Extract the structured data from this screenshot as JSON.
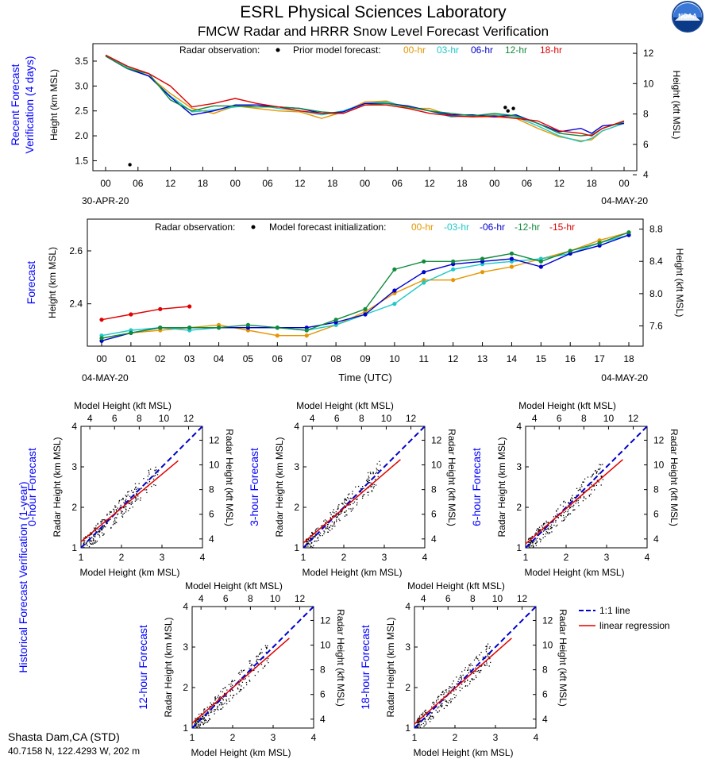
{
  "header": {
    "title": "ESRL Physical Sciences Laboratory",
    "subtitle": "FMCW Radar and HRRR Snow Level Forecast Verification",
    "logo_text": "NOAA"
  },
  "colors": {
    "h00": "#e69500",
    "h03": "#1ec8c8",
    "h06": "#0000cc",
    "h12": "#118a3c",
    "h15": "#e00000",
    "h18": "#e00000",
    "side_label": "#0000ff"
  },
  "panel1": {
    "side_label_line1": "Recent Forecast",
    "side_label_line2": "Verification (4 days)",
    "ylabel_left": "Height (km MSL)",
    "ylabel_right": "Height (kft MSL)",
    "legend": {
      "radar": "Radar observation:",
      "prior": "Prior model forecast:",
      "items": [
        "00-hr",
        "03-hr",
        "06-hr",
        "12-hr",
        "18-hr"
      ]
    },
    "xticks": [
      "00",
      "06",
      "12",
      "18",
      "00",
      "06",
      "12",
      "18",
      "00",
      "06",
      "12",
      "18",
      "00",
      "06",
      "12",
      "18",
      "00"
    ],
    "yticks_left": [
      "1.5",
      "2.0",
      "2.5",
      "3.0",
      "3.5"
    ],
    "yticks_right": [
      "4",
      "6",
      "8",
      "10",
      "12"
    ],
    "date_left": "30-APR-20",
    "date_right": "04-MAY-20"
  },
  "panel2": {
    "side_label": "Forecast",
    "ylabel_left": "Height (km MSL)",
    "ylabel_right": "Height (kft MSL)",
    "xlabel": "Time (UTC)",
    "legend": {
      "radar": "Radar observation:",
      "init": "Model forecast initialization:",
      "items": [
        "00-hr",
        "-03-hr",
        "-06-hr",
        "-12-hr",
        "-15-hr"
      ]
    },
    "xticks": [
      "00",
      "01",
      "02",
      "03",
      "04",
      "05",
      "06",
      "07",
      "08",
      "09",
      "10",
      "11",
      "12",
      "13",
      "14",
      "15",
      "16",
      "17",
      "18"
    ],
    "yticks_left": [
      "2.4",
      "2.6"
    ],
    "yticks_right": [
      "7.6",
      "8.0",
      "8.4",
      "8.8"
    ],
    "date_left": "04-MAY-20",
    "date_right": "04-MAY-20"
  },
  "scatter_common": {
    "side_label": "Historical Forecast Verification (1-year)",
    "top_label": "Model Height (kft MSL)",
    "bottom_label": "Model Height (km MSL)",
    "left_label": "Radar Height (km MSL)",
    "right_label": "Radar Height (kft MSL)",
    "ticks_km": [
      "1",
      "2",
      "3",
      "4"
    ],
    "ticks_kft": [
      "4",
      "6",
      "8",
      "10",
      "12"
    ],
    "legend_one_to_one": "1:1 line",
    "legend_regression": "linear regression"
  },
  "scatter_panels": [
    {
      "title": "0-hour Forecast"
    },
    {
      "title": "3-hour Forecast"
    },
    {
      "title": "6-hour Forecast"
    },
    {
      "title": "12-hour Forecast"
    },
    {
      "title": "18-hour Forecast"
    }
  ],
  "footer": {
    "site": "Shasta Dam,CA (STD)",
    "coords": "40.7158 N, 122.4293 W, 202 m"
  },
  "chart_data": [
    {
      "type": "line",
      "x_unit": "hours from 00 UTC 30-APR-20",
      "ylim": [
        1.3,
        3.85
      ],
      "xlim": [
        0,
        96
      ],
      "radar_observation": [
        [
          4.5,
          1.42
        ],
        [
          74,
          2.57
        ],
        [
          74.5,
          2.5
        ],
        [
          75.5,
          2.55
        ]
      ],
      "series": [
        {
          "name": "00-hr",
          "x": [
            0,
            4,
            8,
            12,
            16,
            20,
            24,
            28,
            32,
            36,
            40,
            44,
            48,
            52,
            56,
            60,
            64,
            68,
            72,
            76,
            80,
            84,
            88,
            90,
            92,
            96
          ],
          "values": [
            3.62,
            3.4,
            3.2,
            2.85,
            2.55,
            2.45,
            2.6,
            2.55,
            2.5,
            2.48,
            2.35,
            2.48,
            2.68,
            2.7,
            2.55,
            2.55,
            2.4,
            2.38,
            2.38,
            2.35,
            2.15,
            1.98,
            1.9,
            1.92,
            2.1,
            2.25
          ]
        },
        {
          "name": "03-hr",
          "x": [
            0,
            4,
            8,
            12,
            16,
            20,
            24,
            28,
            32,
            36,
            40,
            44,
            48,
            52,
            56,
            60,
            64,
            68,
            72,
            76,
            80,
            84,
            88,
            90,
            92,
            96
          ],
          "values": [
            3.62,
            3.38,
            3.2,
            2.8,
            2.48,
            2.52,
            2.58,
            2.62,
            2.55,
            2.5,
            2.42,
            2.5,
            2.65,
            2.68,
            2.58,
            2.5,
            2.38,
            2.4,
            2.42,
            2.38,
            2.2,
            2.0,
            1.88,
            1.95,
            2.1,
            2.25
          ]
        },
        {
          "name": "06-hr",
          "x": [
            0,
            4,
            8,
            12,
            16,
            20,
            24,
            28,
            32,
            36,
            40,
            44,
            48,
            52,
            56,
            60,
            64,
            68,
            72,
            76,
            80,
            84,
            88,
            90,
            92,
            96
          ],
          "values": [
            3.6,
            3.35,
            3.2,
            2.78,
            2.42,
            2.5,
            2.62,
            2.62,
            2.58,
            2.55,
            2.45,
            2.48,
            2.65,
            2.65,
            2.6,
            2.5,
            2.42,
            2.42,
            2.38,
            2.42,
            2.25,
            2.08,
            2.15,
            2.05,
            2.2,
            2.25
          ]
        },
        {
          "name": "12-hr",
          "x": [
            0,
            4,
            8,
            12,
            16,
            20,
            24,
            28,
            32,
            36,
            40,
            44,
            48,
            52,
            56,
            60,
            64,
            68,
            72,
            76,
            80,
            84,
            88,
            90,
            92,
            96
          ],
          "values": [
            3.6,
            3.35,
            3.25,
            2.72,
            2.5,
            2.6,
            2.6,
            2.58,
            2.58,
            2.55,
            2.48,
            2.45,
            2.62,
            2.65,
            2.58,
            2.5,
            2.45,
            2.4,
            2.45,
            2.4,
            2.25,
            2.05,
            2.0,
            2.02,
            2.15,
            2.28
          ]
        },
        {
          "name": "18-hr",
          "x": [
            0,
            4,
            8,
            12,
            16,
            20,
            24,
            28,
            32,
            36,
            40,
            44,
            48,
            52,
            56,
            60,
            64,
            68,
            72,
            76,
            80,
            84,
            88,
            90,
            92,
            96
          ],
          "values": [
            3.62,
            3.4,
            3.25,
            3.0,
            2.58,
            2.65,
            2.75,
            2.65,
            2.58,
            2.5,
            2.45,
            2.45,
            2.62,
            2.62,
            2.55,
            2.45,
            2.4,
            2.38,
            2.4,
            2.35,
            2.3,
            2.1,
            2.05,
            2.0,
            2.15,
            2.3
          ]
        }
      ]
    },
    {
      "type": "line",
      "x_unit": "hour UTC 04-MAY-20",
      "ylim": [
        2.24,
        2.72
      ],
      "xlim": [
        0,
        18
      ],
      "radar_observation": [],
      "series": [
        {
          "name": "00-hr",
          "x": [
            0,
            1,
            2,
            3,
            4,
            5,
            6,
            7,
            8,
            9,
            10,
            11,
            12,
            13,
            14,
            15,
            16,
            17,
            18
          ],
          "values": [
            2.27,
            2.29,
            2.3,
            2.31,
            2.32,
            2.3,
            2.28,
            2.28,
            2.32,
            2.37,
            2.44,
            2.49,
            2.49,
            2.52,
            2.54,
            2.57,
            2.6,
            2.64,
            2.67
          ]
        },
        {
          "name": "-03-hr",
          "x": [
            0,
            1,
            2,
            3,
            4,
            5,
            6,
            7,
            8,
            9,
            10,
            11,
            12,
            13,
            14,
            15,
            16,
            17,
            18
          ],
          "values": [
            2.28,
            2.3,
            2.31,
            2.3,
            2.31,
            2.31,
            2.31,
            2.3,
            2.32,
            2.36,
            2.4,
            2.48,
            2.53,
            2.55,
            2.56,
            2.57,
            2.59,
            2.63,
            2.66
          ]
        },
        {
          "name": "-06-hr",
          "x": [
            0,
            1,
            2,
            3,
            4,
            5,
            6,
            7,
            8,
            9,
            10,
            11,
            12,
            13,
            14,
            15,
            16,
            17,
            18
          ],
          "values": [
            2.26,
            2.29,
            2.31,
            2.31,
            2.31,
            2.31,
            2.31,
            2.31,
            2.33,
            2.36,
            2.45,
            2.52,
            2.55,
            2.56,
            2.57,
            2.54,
            2.59,
            2.62,
            2.66
          ]
        },
        {
          "name": "-12-hr",
          "x": [
            0,
            1,
            2,
            3,
            4,
            5,
            6,
            7,
            8,
            9,
            10,
            11,
            12,
            13,
            14,
            15,
            16,
            17,
            18
          ],
          "values": [
            2.27,
            2.29,
            2.31,
            2.31,
            2.31,
            2.32,
            2.31,
            2.3,
            2.34,
            2.38,
            2.53,
            2.56,
            2.56,
            2.57,
            2.59,
            2.56,
            2.6,
            2.63,
            2.67
          ]
        },
        {
          "name": "-15-hr",
          "x": [
            0,
            1,
            2,
            3
          ],
          "values": [
            2.34,
            2.36,
            2.38,
            2.39
          ]
        }
      ]
    },
    {
      "type": "scatter",
      "title": "0-hour Forecast",
      "xlim": [
        1,
        4
      ],
      "ylim": [
        1,
        4
      ],
      "one_to_one": [
        [
          1,
          1
        ],
        [
          4,
          4
        ]
      ],
      "regression": [
        [
          1,
          1.15
        ],
        [
          3.4,
          3.15
        ]
      ]
    },
    {
      "type": "scatter",
      "title": "3-hour Forecast",
      "xlim": [
        1,
        4
      ],
      "ylim": [
        1,
        4
      ],
      "one_to_one": [
        [
          1,
          1
        ],
        [
          4,
          4
        ]
      ],
      "regression": [
        [
          1,
          1.12
        ],
        [
          3.4,
          3.18
        ]
      ]
    },
    {
      "type": "scatter",
      "title": "6-hour Forecast",
      "xlim": [
        1,
        4
      ],
      "ylim": [
        1,
        4
      ],
      "one_to_one": [
        [
          1,
          1
        ],
        [
          4,
          4
        ]
      ],
      "regression": [
        [
          1,
          1.1
        ],
        [
          3.4,
          3.18
        ]
      ]
    },
    {
      "type": "scatter",
      "title": "12-hour Forecast",
      "xlim": [
        1,
        4
      ],
      "ylim": [
        1,
        4
      ],
      "one_to_one": [
        [
          1,
          1
        ],
        [
          4,
          4
        ]
      ],
      "regression": [
        [
          1,
          1.12
        ],
        [
          3.4,
          3.22
        ]
      ]
    },
    {
      "type": "scatter",
      "title": "18-hour Forecast",
      "xlim": [
        1,
        4
      ],
      "ylim": [
        1,
        4
      ],
      "one_to_one": [
        [
          1,
          1
        ],
        [
          4,
          4
        ]
      ],
      "regression": [
        [
          1,
          1.1
        ],
        [
          3.4,
          3.22
        ]
      ]
    }
  ]
}
